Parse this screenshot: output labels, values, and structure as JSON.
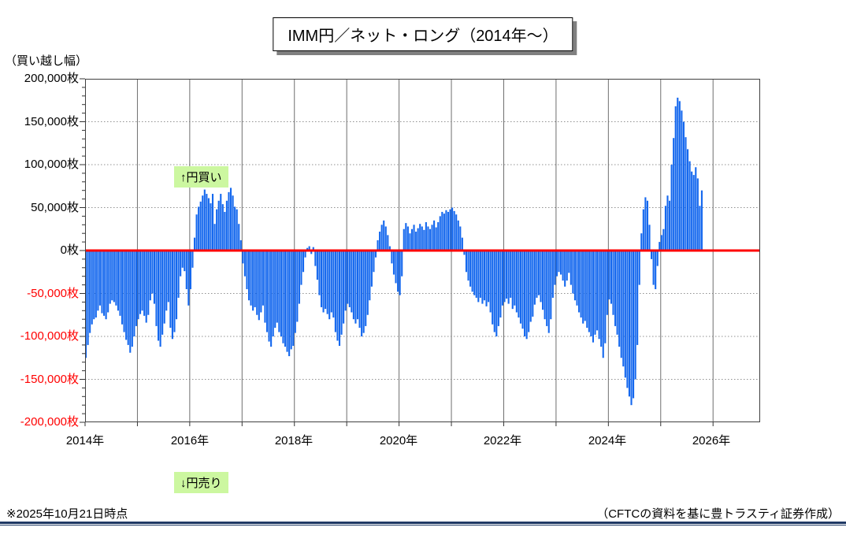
{
  "title": "IMM円／ネット・ロング（2014年～）",
  "y_axis": {
    "unit_label": "（買い越し幅）",
    "ticks": [
      "200,000枚",
      "150,000枚",
      "100,000枚",
      "50,000枚",
      "0枚",
      "-50,000枚",
      "-100,000枚",
      "-150,000枚",
      "-200,000枚"
    ]
  },
  "x_axis": {
    "labels": [
      "2014年",
      "2016年",
      "2018年",
      "2020年",
      "2022年",
      "2024年",
      "2026年"
    ],
    "label_years": [
      2014,
      2016,
      2018,
      2020,
      2022,
      2024,
      2026
    ]
  },
  "annotations": {
    "buy": "↑円買い",
    "sell": "↓円売り"
  },
  "footer": {
    "as_of": "※2025年10月21日時点",
    "source": "（CFTCの資料を基に豊トラスティ証券作成）"
  },
  "colors": {
    "bar": "#1568ee",
    "zero_line": "#ff0000",
    "negative_label": "#ff0000",
    "grid_h": "#909090",
    "grid_v": "#6e6e6e",
    "border": "#404040",
    "note_bg": "#ccf7a0",
    "rule_navy": "#1f3864"
  },
  "chart_data": {
    "type": "bar",
    "title": "IMM円／ネット・ロング（2014年～）",
    "ylabel": "（買い越し幅）",
    "y_unit": "枚 (contracts)",
    "values_unit": "thousand contracts (×1,000枚)",
    "ylim": [
      -200,
      200
    ],
    "xlim": [
      2014,
      2026.9
    ],
    "grid": true,
    "zero_line": true,
    "start_year": 2014.0,
    "samples_per_year": 26,
    "values": [
      -125,
      -110,
      -96,
      -86,
      -80,
      -78,
      -70,
      -64,
      -73,
      -76,
      -80,
      -72,
      -62,
      -58,
      -60,
      -64,
      -70,
      -76,
      -86,
      -95,
      -104,
      -110,
      -119,
      -112,
      -100,
      -88,
      -80,
      -74,
      -70,
      -76,
      -84,
      -75,
      -58,
      -50,
      -62,
      -88,
      -105,
      -112,
      -98,
      -85,
      -70,
      -60,
      -90,
      -103,
      -95,
      -80,
      -55,
      -30,
      -20,
      -24,
      -45,
      -64,
      -45,
      -20,
      15,
      42,
      51,
      57,
      64,
      71,
      66,
      61,
      55,
      66,
      31,
      48,
      58,
      66,
      54,
      45,
      58,
      68,
      73,
      64,
      51,
      48,
      31,
      12,
      -15,
      -30,
      -45,
      -58,
      -64,
      -70,
      -66,
      -75,
      -81,
      -72,
      -64,
      -84,
      -95,
      -106,
      -112,
      -100,
      -90,
      -84,
      -95,
      -100,
      -108,
      -112,
      -118,
      -123,
      -115,
      -111,
      -96,
      -83,
      -62,
      -40,
      -25,
      -8,
      3,
      5,
      -4,
      4,
      -18,
      -34,
      -52,
      -66,
      -72,
      -68,
      -74,
      -80,
      -72,
      -78,
      -95,
      -105,
      -111,
      -98,
      -85,
      -70,
      -62,
      -66,
      -72,
      -80,
      -85,
      -80,
      -90,
      -100,
      -96,
      -88,
      -75,
      -58,
      -42,
      -25,
      -8,
      12,
      22,
      30,
      35,
      28,
      18,
      5,
      -15,
      -28,
      -38,
      -48,
      -52,
      -30,
      25,
      32,
      28,
      20,
      25,
      30,
      22,
      26,
      31,
      28,
      24,
      33,
      28,
      25,
      30,
      35,
      27,
      33,
      40,
      45,
      43,
      47,
      45,
      48,
      50,
      46,
      42,
      35,
      28,
      15,
      -5,
      -25,
      -35,
      -42,
      -48,
      -52,
      -55,
      -60,
      -55,
      -62,
      -58,
      -65,
      -60,
      -72,
      -86,
      -95,
      -100,
      -88,
      -78,
      -64,
      -60,
      -56,
      -62,
      -55,
      -68,
      -64,
      -72,
      -78,
      -85,
      -91,
      -100,
      -103,
      -95,
      -83,
      -77,
      -63,
      -55,
      -52,
      -60,
      -69,
      -80,
      -88,
      -96,
      -80,
      -55,
      -40,
      -30,
      -25,
      -28,
      -35,
      -42,
      -35,
      -26,
      -40,
      -50,
      -58,
      -64,
      -72,
      -78,
      -85,
      -82,
      -90,
      -95,
      -100,
      -107,
      -98,
      -93,
      -103,
      -112,
      -125,
      -108,
      -75,
      -57,
      -62,
      -75,
      -88,
      -98,
      -112,
      -125,
      -135,
      -148,
      -160,
      -170,
      -180,
      -172,
      -150,
      -110,
      -40,
      20,
      48,
      62,
      58,
      30,
      -10,
      -40,
      -45,
      -18,
      10,
      18,
      25,
      52,
      64,
      58,
      100,
      131,
      168,
      178,
      174,
      163,
      150,
      132,
      118,
      104,
      92,
      88,
      97,
      84,
      52,
      70
    ]
  }
}
